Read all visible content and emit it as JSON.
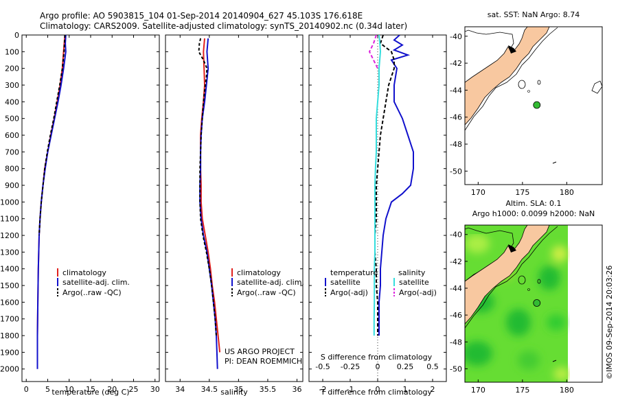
{
  "header": {
    "line1": "Argo profile: AO 5903815_104 01-Sep-2014 20140904_627 45.103S 176.618E",
    "line2": "Climatology: CARS2009. Satellite-adjusted climatology: synTS_20140902.nc (0.34d later)"
  },
  "colors": {
    "climatology": "#e0201c",
    "satellite": "#1010cc",
    "argo": "#000000",
    "sal_satellite": "#33dddd",
    "sal_argo": "#dd22dd",
    "land": "#f8c8a0",
    "sla_green": "#33cc33",
    "marker": "#33bb33"
  },
  "chart_data": [
    {
      "type": "line",
      "name_key": "temperature",
      "xlabel": "temperature (deg C)",
      "xlim": [
        -1,
        31
      ],
      "ylim": [
        0,
        2075
      ],
      "xticks": [
        0,
        5,
        10,
        15,
        20,
        25,
        30
      ],
      "yticks": [
        0,
        100,
        200,
        300,
        400,
        500,
        600,
        700,
        800,
        900,
        1000,
        1100,
        1200,
        1300,
        1400,
        1500,
        1600,
        1700,
        1800,
        1900,
        2000
      ],
      "legend": [
        "climatology",
        "satellite-adj. clim.",
        "Argo(..raw -QC)"
      ],
      "series": [
        {
          "name": "climatology",
          "color": "#e0201c",
          "dash": "",
          "depth": [
            0,
            100,
            200,
            300,
            400,
            500,
            600,
            700,
            800,
            900,
            1000,
            1100,
            1200,
            1300,
            1400,
            1600,
            1800,
            1900
          ],
          "values": [
            9.0,
            8.7,
            8.4,
            7.9,
            7.2,
            6.5,
            5.7,
            5.0,
            4.3,
            3.9,
            3.5,
            3.2,
            3.0,
            2.9,
            2.8,
            2.7,
            2.6,
            2.6
          ]
        },
        {
          "name": "satellite-adj. clim.",
          "color": "#1010cc",
          "dash": "",
          "depth": [
            0,
            50,
            100,
            200,
            300,
            400,
            500,
            600,
            700,
            800,
            900,
            1000,
            1100,
            1200,
            1300,
            1400,
            1600,
            1800,
            2000
          ],
          "values": [
            9.2,
            9.1,
            9.2,
            8.7,
            8.1,
            7.4,
            6.6,
            5.8,
            5.0,
            4.4,
            3.9,
            3.5,
            3.2,
            3.0,
            2.9,
            2.8,
            2.7,
            2.6,
            2.6
          ]
        },
        {
          "name": "Argo(..raw -QC)",
          "color": "#000000",
          "dash": "4,3",
          "depth": [
            0,
            50,
            100,
            150,
            200,
            300,
            400,
            500,
            600,
            700,
            800,
            900,
            1000,
            1100,
            1200
          ],
          "values": [
            9.0,
            8.9,
            8.8,
            8.6,
            8.4,
            7.8,
            7.1,
            6.4,
            5.6,
            4.9,
            4.3,
            3.9,
            3.5,
            3.2,
            3.0
          ]
        }
      ]
    },
    {
      "type": "line",
      "name_key": "salinity",
      "xlabel": "salinity",
      "xlim": [
        33.75,
        36.1
      ],
      "ylim": [
        0,
        2075
      ],
      "xticks": [
        34,
        34.5,
        35,
        35.5,
        36
      ],
      "legend": [
        "climatology",
        "satellite-adj. clim.",
        "Argo(..raw -QC)"
      ],
      "credit1": "US ARGO PROJECT",
      "credit2": "PI: DEAN ROEMMICH",
      "series": [
        {
          "name": "climatology",
          "color": "#e0201c",
          "dash": "",
          "depth": [
            20,
            100,
            200,
            300,
            400,
            500,
            600,
            700,
            800,
            900,
            1000,
            1100,
            1200,
            1300,
            1400,
            1500,
            1600,
            1700,
            1800,
            1900
          ],
          "values": [
            34.42,
            34.4,
            34.41,
            34.42,
            34.4,
            34.37,
            34.35,
            34.35,
            34.35,
            34.36,
            34.36,
            34.38,
            34.43,
            34.48,
            34.52,
            34.55,
            34.59,
            34.62,
            34.65,
            34.68
          ]
        },
        {
          "name": "satellite-adj. clim.",
          "color": "#1010cc",
          "dash": "",
          "depth": [
            20,
            100,
            200,
            300,
            400,
            500,
            600,
            700,
            800,
            900,
            1000,
            1100,
            1200,
            1300,
            1400,
            1500,
            1600,
            1700,
            1800,
            1900,
            2000
          ],
          "values": [
            34.48,
            34.46,
            34.48,
            34.45,
            34.42,
            34.38,
            34.36,
            34.35,
            34.35,
            34.34,
            34.34,
            34.36,
            34.4,
            34.46,
            34.5,
            34.54,
            34.57,
            34.6,
            34.62,
            34.63,
            34.64
          ]
        },
        {
          "name": "Argo(..raw -QC)",
          "color": "#000000",
          "dash": "4,3",
          "depth": [
            20,
            50,
            100,
            150,
            200,
            250,
            300,
            400,
            500,
            600,
            700,
            800,
            900,
            1000,
            1100,
            1200,
            1300,
            1400,
            1500,
            1600,
            1700,
            1800
          ],
          "values": [
            34.35,
            34.33,
            34.32,
            34.4,
            34.46,
            34.45,
            34.43,
            34.4,
            34.38,
            34.36,
            34.35,
            34.34,
            34.34,
            34.34,
            34.35,
            34.39,
            34.45,
            34.5,
            34.54,
            34.57,
            34.6,
            34.62
          ]
        }
      ]
    },
    {
      "type": "line",
      "name_key": "difference",
      "xlabel": "T difference from climatology",
      "xlabel_top": "S difference from climatology",
      "xlim": [
        -2.5,
        2.5
      ],
      "ylim": [
        0,
        2075
      ],
      "xticks": [
        -2,
        -1,
        0,
        1,
        2
      ],
      "top_ticks": [
        "-0.5",
        "-0.25",
        "0",
        "0.25",
        "0.5"
      ],
      "legend_temperature": "temperature",
      "legend_salinity": "salinity",
      "legend_satellite": "satellite",
      "legend_argo": "Argo(-adj)",
      "series": [
        {
          "name": "T satellite",
          "color": "#1010cc",
          "dash": "",
          "depth": [
            0,
            30,
            60,
            90,
            120,
            150,
            200,
            300,
            400,
            500,
            600,
            650,
            700,
            800,
            900,
            950,
            1000,
            1100,
            1200,
            1300,
            1400,
            1500,
            1600,
            1700,
            1800
          ],
          "values": [
            0.8,
            0.6,
            0.9,
            0.6,
            1.1,
            0.5,
            0.7,
            0.6,
            0.6,
            0.9,
            1.1,
            1.2,
            1.3,
            1.3,
            1.2,
            0.9,
            0.5,
            0.3,
            0.2,
            0.15,
            0.1,
            0.1,
            0.05,
            0.05,
            0.05
          ]
        },
        {
          "name": "T Argo(-adj)",
          "color": "#000000",
          "dash": "5,3",
          "depth": [
            0,
            50,
            100,
            150,
            200,
            300,
            400,
            500,
            600,
            700,
            800,
            900,
            1000,
            1100,
            1200,
            1300,
            1400,
            1500,
            1600,
            1700,
            1800
          ],
          "values": [
            0.2,
            0.1,
            0.5,
            0.6,
            0.6,
            0.4,
            0.3,
            0.2,
            0.1,
            0.05,
            0.0,
            -0.05,
            -0.05,
            -0.05,
            -0.1,
            -0.1,
            -0.05,
            -0.05,
            0.0,
            0.0,
            0.0
          ]
        },
        {
          "name": "S satellite",
          "color": "#33dddd",
          "dash": "",
          "depth": [
            0,
            50,
            100,
            200,
            300,
            400,
            500,
            600,
            700,
            800,
            900,
            1000,
            1100,
            1200,
            1300,
            1400,
            1500,
            1600,
            1700,
            1800
          ],
          "values": [
            0.05,
            0.08,
            0.1,
            0.05,
            0.05,
            0.0,
            -0.05,
            -0.05,
            -0.05,
            -0.08,
            -0.1,
            -0.1,
            -0.1,
            -0.1,
            -0.1,
            -0.12,
            -0.12,
            -0.12,
            -0.13,
            -0.13
          ]
        },
        {
          "name": "S Argo(-adj)",
          "color": "#dd22dd",
          "dash": "5,3",
          "depth": [
            0,
            50,
            100,
            150,
            200
          ],
          "values": [
            -0.05,
            -0.15,
            -0.3,
            -0.15,
            0.0
          ]
        }
      ]
    },
    {
      "type": "map",
      "name_key": "sst",
      "title": "sat. SST: NaN Argo: 8.74",
      "xlim": [
        168.5,
        184
      ],
      "ylim": [
        -51,
        -39.3
      ],
      "xticks": [
        170,
        175,
        180
      ],
      "yticks": [
        -40,
        -42,
        -44,
        -46,
        -48,
        -50
      ],
      "marker": {
        "lon": 176.62,
        "lat": -45.1
      }
    },
    {
      "type": "map",
      "name_key": "sla",
      "title": "Altim. SLA: 0.1",
      "subtitle": "Argo h1000: 0.0099 h2000: NaN",
      "xlim": [
        168.5,
        184
      ],
      "ylim": [
        -51,
        -39.3
      ],
      "xticks": [
        170,
        175,
        180
      ],
      "yticks": [
        -40,
        -42,
        -44,
        -46,
        -48,
        -50
      ],
      "marker": {
        "lon": 176.62,
        "lat": -45.1
      }
    }
  ],
  "footer": {
    "timestamp": "©IMOS 09-Sep-2014 20:03:26"
  }
}
